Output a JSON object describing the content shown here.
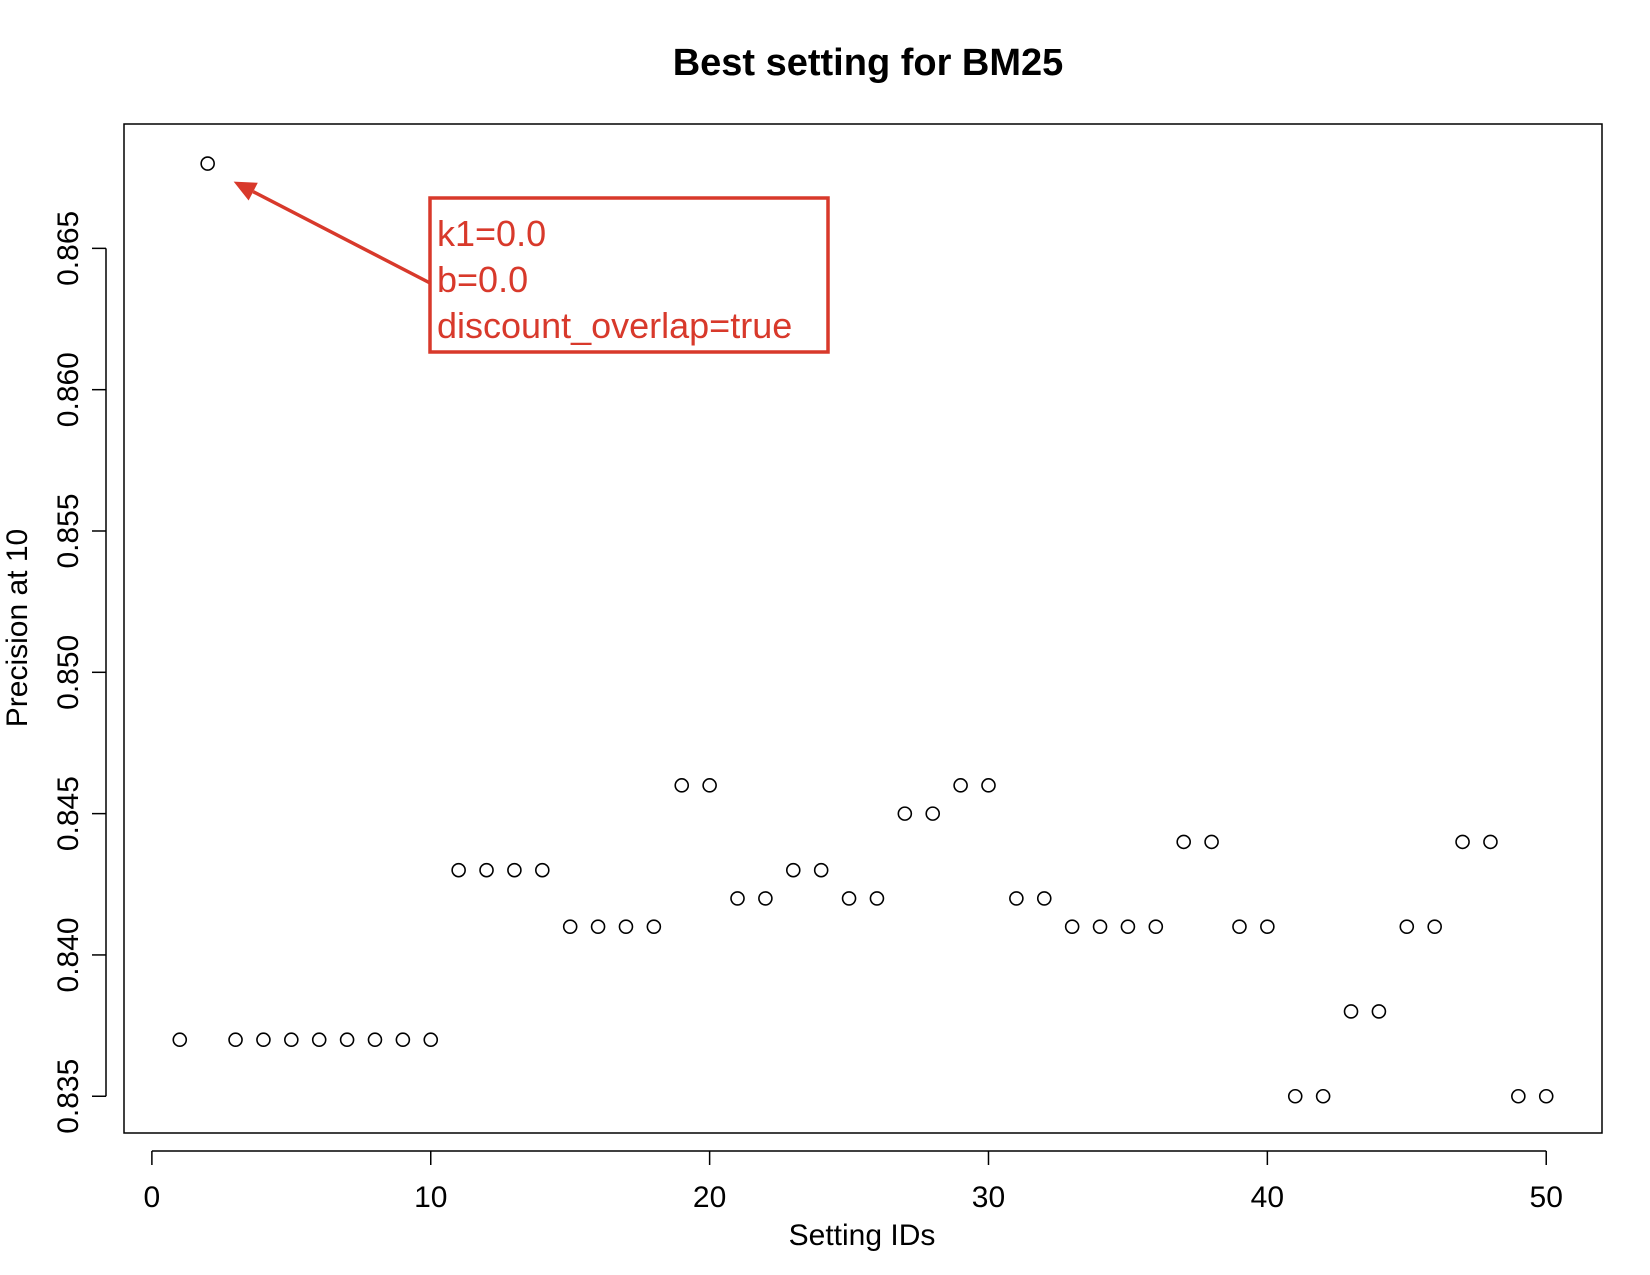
{
  "chart_data": {
    "type": "scatter",
    "title": "Best setting for BM25",
    "xlabel": "Setting IDs",
    "ylabel": "Precision at 10",
    "xlim": [
      -1,
      52
    ],
    "ylim": [
      0.8337,
      0.8694
    ],
    "x_ticks": [
      0,
      10,
      20,
      30,
      40,
      50
    ],
    "y_ticks": [
      0.835,
      0.84,
      0.845,
      0.85,
      0.855,
      0.86,
      0.865
    ],
    "x_tick_labels": [
      "0",
      "10",
      "20",
      "30",
      "40",
      "50"
    ],
    "y_tick_labels": [
      "0.835",
      "0.840",
      "0.845",
      "0.850",
      "0.855",
      "0.860",
      "0.865"
    ],
    "grid": false,
    "marker": "open-circle",
    "x": [
      1,
      2,
      3,
      4,
      5,
      6,
      7,
      8,
      9,
      10,
      11,
      12,
      13,
      14,
      15,
      16,
      17,
      18,
      19,
      20,
      21,
      22,
      23,
      24,
      25,
      26,
      27,
      28,
      29,
      30,
      31,
      32,
      33,
      34,
      35,
      36,
      37,
      38,
      39,
      40,
      41,
      42,
      43,
      44,
      45,
      46,
      47,
      48,
      49,
      50
    ],
    "y": [
      0.837,
      0.868,
      0.837,
      0.837,
      0.837,
      0.837,
      0.837,
      0.837,
      0.837,
      0.837,
      0.843,
      0.843,
      0.843,
      0.843,
      0.841,
      0.841,
      0.841,
      0.841,
      0.846,
      0.846,
      0.842,
      0.842,
      0.843,
      0.843,
      0.842,
      0.842,
      0.845,
      0.845,
      0.846,
      0.846,
      0.842,
      0.842,
      0.841,
      0.841,
      0.841,
      0.841,
      0.844,
      0.844,
      0.841,
      0.841,
      0.835,
      0.835,
      0.838,
      0.838,
      0.841,
      0.841,
      0.844,
      0.844,
      0.835,
      0.835
    ],
    "annotation": {
      "lines": [
        "k1=0.0",
        "b=0.0",
        "discount_overlap=true"
      ],
      "points_to": {
        "x": 2,
        "y": 0.868
      },
      "color": "#d8392b"
    }
  }
}
